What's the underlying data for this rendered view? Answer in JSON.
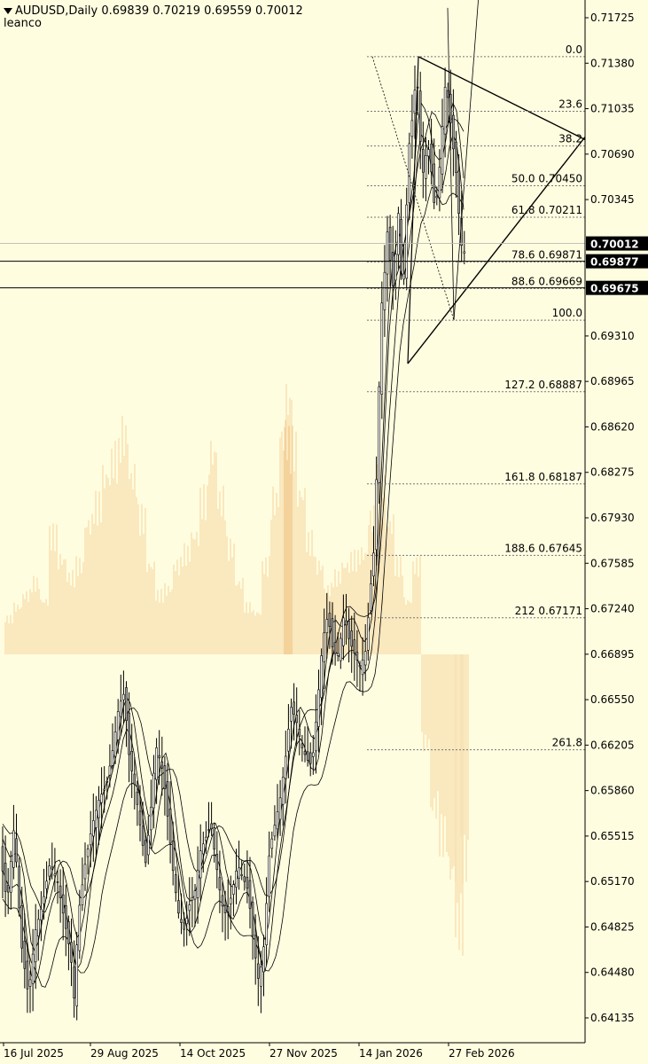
{
  "header": {
    "symbol": "AUDUSD,Daily",
    "ohlc": "0.69839 0.70219 0.69559 0.70012",
    "author": "leanco"
  },
  "chart_data": {
    "type": "candlestick",
    "symbol": "AUDUSD",
    "timeframe": "Daily",
    "ylim": [
      0.6395,
      0.719
    ],
    "price_ticks": [
      "0.71725",
      "0.71380",
      "0.71035",
      "0.70690",
      "0.70345",
      "0.69310",
      "0.68965",
      "0.68620",
      "0.68275",
      "0.67930",
      "0.67585",
      "0.67240",
      "0.66895",
      "0.66550",
      "0.66205",
      "0.65860",
      "0.65515",
      "0.65170",
      "0.64825",
      "0.64480",
      "0.64135"
    ],
    "date_ticks": [
      "16 Jul 2025",
      "29 Aug 2025",
      "14 Oct 2025",
      "27 Nov 2025",
      "14 Jan 2026",
      "27 Feb 2026"
    ],
    "last_price": "0.70012",
    "horizontal_lines": [
      {
        "label": "0.69877",
        "price": 0.69877
      },
      {
        "label": "0.69675",
        "price": 0.69675
      }
    ],
    "fibonacci_levels": [
      {
        "label": "0.0",
        "price": 0.7143
      },
      {
        "label": "23.6",
        "price": 0.71015
      },
      {
        "label": "38.2",
        "price": 0.70752
      },
      {
        "label": "50.0 0.70450",
        "price": 0.7045
      },
      {
        "label": "61.8 0.70211",
        "price": 0.70211
      },
      {
        "label": "78.6 0.69871",
        "price": 0.69871
      },
      {
        "label": "88.6 0.69669",
        "price": 0.69669
      },
      {
        "label": "100.0",
        "price": 0.6943
      },
      {
        "label": "127.2 0.68887",
        "price": 0.68887
      },
      {
        "label": "161.8 0.68187",
        "price": 0.68187
      },
      {
        "label": "188.6 0.67645",
        "price": 0.67645
      },
      {
        "label": "212 0.67171",
        "price": 0.67171
      },
      {
        "label": "261.8",
        "price": 0.6617
      }
    ],
    "price_path": [
      [
        0,
        0.654
      ],
      [
        8,
        0.65
      ],
      [
        16,
        0.656
      ],
      [
        24,
        0.647
      ],
      [
        32,
        0.643
      ],
      [
        40,
        0.648
      ],
      [
        48,
        0.65
      ],
      [
        56,
        0.653
      ],
      [
        64,
        0.652
      ],
      [
        72,
        0.649
      ],
      [
        80,
        0.646
      ],
      [
        84,
        0.6425
      ],
      [
        88,
        0.649
      ],
      [
        96,
        0.653
      ],
      [
        104,
        0.656
      ],
      [
        112,
        0.658
      ],
      [
        120,
        0.659
      ],
      [
        128,
        0.662
      ],
      [
        134,
        0.665
      ],
      [
        140,
        0.666
      ],
      [
        146,
        0.661
      ],
      [
        152,
        0.659
      ],
      [
        158,
        0.656
      ],
      [
        164,
        0.653
      ],
      [
        170,
        0.657
      ],
      [
        176,
        0.662
      ],
      [
        184,
        0.66
      ],
      [
        190,
        0.656
      ],
      [
        196,
        0.652
      ],
      [
        202,
        0.649
      ],
      [
        208,
        0.648
      ],
      [
        214,
        0.65
      ],
      [
        220,
        0.651
      ],
      [
        226,
        0.654
      ],
      [
        232,
        0.655
      ],
      [
        238,
        0.656
      ],
      [
        244,
        0.653
      ],
      [
        250,
        0.65
      ],
      [
        256,
        0.649
      ],
      [
        262,
        0.651
      ],
      [
        268,
        0.653
      ],
      [
        274,
        0.652
      ],
      [
        280,
        0.651
      ],
      [
        286,
        0.647
      ],
      [
        292,
        0.644
      ],
      [
        298,
        0.647
      ],
      [
        304,
        0.654
      ],
      [
        310,
        0.656
      ],
      [
        316,
        0.658
      ],
      [
        322,
        0.661
      ],
      [
        328,
        0.665
      ],
      [
        334,
        0.664
      ],
      [
        340,
        0.662
      ],
      [
        346,
        0.661
      ],
      [
        352,
        0.6605
      ],
      [
        358,
        0.665
      ],
      [
        364,
        0.67
      ],
      [
        370,
        0.672
      ],
      [
        376,
        0.669
      ],
      [
        382,
        0.669
      ],
      [
        388,
        0.672
      ],
      [
        394,
        0.67
      ],
      [
        400,
        0.669
      ],
      [
        406,
        0.668
      ],
      [
        412,
        0.669
      ],
      [
        418,
        0.674
      ],
      [
        422,
        0.677
      ],
      [
        426,
        0.685
      ],
      [
        430,
        0.695
      ],
      [
        434,
        0.698
      ],
      [
        438,
        0.702
      ],
      [
        442,
        0.696
      ],
      [
        446,
        0.699
      ],
      [
        450,
        0.703
      ],
      [
        454,
        0.695
      ],
      [
        458,
        0.702
      ],
      [
        462,
        0.708
      ],
      [
        466,
        0.71
      ],
      [
        470,
        0.7135
      ],
      [
        474,
        0.708
      ],
      [
        478,
        0.705
      ],
      [
        482,
        0.708
      ],
      [
        486,
        0.706
      ],
      [
        490,
        0.703
      ],
      [
        494,
        0.704
      ],
      [
        498,
        0.708
      ],
      [
        502,
        0.712
      ],
      [
        506,
        0.711
      ],
      [
        510,
        0.708
      ],
      [
        514,
        0.706
      ],
      [
        518,
        0.702
      ],
      [
        522,
        0.699
      ],
      [
        526,
        0.7001
      ]
    ],
    "histogram": [
      [
        10,
        0.12
      ],
      [
        20,
        0.16
      ],
      [
        30,
        0.2
      ],
      [
        40,
        0.24
      ],
      [
        50,
        0.18
      ],
      [
        60,
        0.4
      ],
      [
        70,
        0.32
      ],
      [
        80,
        0.26
      ],
      [
        90,
        0.3
      ],
      [
        100,
        0.44
      ],
      [
        110,
        0.5
      ],
      [
        120,
        0.6
      ],
      [
        130,
        0.66
      ],
      [
        140,
        0.74
      ],
      [
        150,
        0.6
      ],
      [
        160,
        0.46
      ],
      [
        170,
        0.3
      ],
      [
        180,
        0.2
      ],
      [
        190,
        0.22
      ],
      [
        200,
        0.3
      ],
      [
        210,
        0.34
      ],
      [
        220,
        0.4
      ],
      [
        230,
        0.52
      ],
      [
        240,
        0.68
      ],
      [
        250,
        0.52
      ],
      [
        260,
        0.36
      ],
      [
        270,
        0.24
      ],
      [
        280,
        0.16
      ],
      [
        290,
        0.14
      ],
      [
        300,
        0.3
      ],
      [
        310,
        0.52
      ],
      [
        320,
        0.74
      ],
      [
        325,
        0.86
      ],
      [
        330,
        0.7
      ],
      [
        340,
        0.54
      ],
      [
        350,
        0.38
      ],
      [
        360,
        0.3
      ],
      [
        370,
        0.22
      ],
      [
        380,
        0.26
      ],
      [
        390,
        0.3
      ],
      [
        400,
        0.32
      ],
      [
        410,
        0.34
      ],
      [
        420,
        0.46
      ],
      [
        430,
        0.58
      ],
      [
        440,
        0.44
      ],
      [
        450,
        0.3
      ],
      [
        460,
        0.18
      ],
      [
        470,
        0.3
      ],
      [
        480,
        -0.3
      ],
      [
        490,
        -0.52
      ],
      [
        500,
        -0.62
      ],
      [
        510,
        -0.74
      ],
      [
        518,
        -0.92
      ],
      [
        524,
        -0.7
      ]
    ]
  }
}
